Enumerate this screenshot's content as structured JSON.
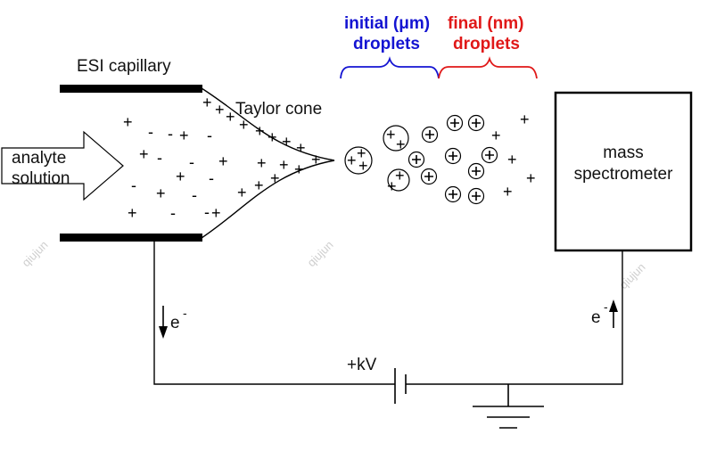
{
  "labels": {
    "capillary": "ESI capillary",
    "taylor_cone": "Taylor cone",
    "analyte_line1": "analyte",
    "analyte_line2": "solution",
    "mass_line1": "mass",
    "mass_line2": "spectrometer",
    "initial_line1": "initial (μm)",
    "initial_line2": "droplets",
    "final_line1": "final (nm)",
    "final_line2": "droplets",
    "voltage": "+kV",
    "electron_left": "e",
    "electron_right": "e",
    "electron_superscript": "-",
    "watermark": "qiujun"
  },
  "colors": {
    "initial_droplets": "#1414d2",
    "final_droplets": "#e01818",
    "line": "#000000"
  },
  "icons": {
    "electron_flow_left": "arrow-down-icon",
    "electron_flow_right": "arrow-up-icon",
    "ground": "ground-symbol-icon",
    "capacitor": "battery-symbol-icon"
  }
}
